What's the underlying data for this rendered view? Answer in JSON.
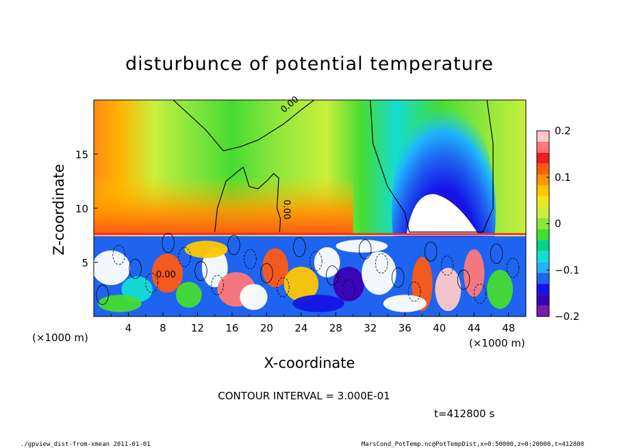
{
  "chart_data": {
    "type": "heatmap",
    "title": "disturbunce of potential temperature",
    "xlabel": "X-coordinate",
    "ylabel": "Z-coordinate",
    "x_unit_left": "(×1000 m)",
    "x_unit_right": "(×1000 m)",
    "xlim": [
      0,
      50
    ],
    "ylim": [
      0,
      20
    ],
    "x_ticks": [
      4,
      8,
      12,
      16,
      20,
      24,
      28,
      32,
      36,
      40,
      44,
      48
    ],
    "y_ticks": [
      5,
      10,
      15
    ],
    "colorbar": {
      "range": [
        -0.2,
        0.2
      ],
      "ticks": [
        {
          "value": 0.2,
          "label": "0.2"
        },
        {
          "value": 0.1,
          "label": "0.1"
        },
        {
          "value": 0,
          "label": "0"
        },
        {
          "value": -0.1,
          "label": "−0.1"
        },
        {
          "value": -0.2,
          "label": "−0.2"
        }
      ],
      "colors": [
        "#7a1cac",
        "#3c00b4",
        "#1414e6",
        "#1e64f0",
        "#1eb4ff",
        "#14dcd2",
        "#00d28c",
        "#46dc32",
        "#8ce63c",
        "#c8f03c",
        "#f0e61e",
        "#ffc800",
        "#ff9600",
        "#ff5a14",
        "#f01e1e",
        "#ff7878",
        "#ffc8c8"
      ]
    },
    "contour_labels": [
      "0.00",
      "0.00",
      "0.00"
    ],
    "contour_interval_text": "CONTOUR INTERVAL = 3.000E-01",
    "time_text": "t=412800 s"
  },
  "footer": {
    "left": "./gpview_dist-from-xmean  2011-01-01",
    "right": "MarsCond_PotTemp.nc@PotTempDist,x=0:50000,z=0:20000,t=412800"
  }
}
